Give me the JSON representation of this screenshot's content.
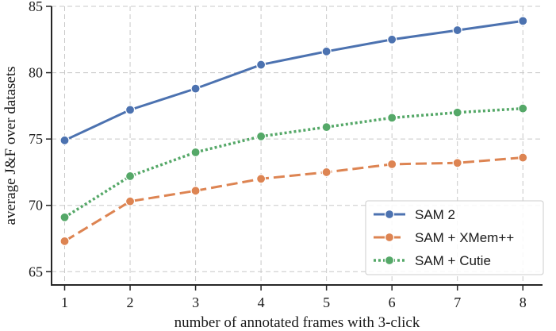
{
  "chart_data": {
    "type": "line",
    "x": [
      1,
      2,
      3,
      4,
      5,
      6,
      7,
      8
    ],
    "xlabel": "number of annotated frames with 3-click",
    "ylabel": "average J&F over datasets",
    "xlim": [
      0.8,
      8.3
    ],
    "ylim": [
      64,
      85
    ],
    "xticks": [
      1,
      2,
      3,
      4,
      5,
      6,
      7,
      8
    ],
    "yticks": [
      65,
      70,
      75,
      80,
      85
    ],
    "grid": true,
    "legend_position": "bottom-right",
    "series": [
      {
        "name": "SAM 2",
        "color": "#4c72b0",
        "linestyle": "solid",
        "values": [
          74.9,
          77.2,
          78.8,
          80.6,
          81.6,
          82.5,
          83.2,
          83.9
        ]
      },
      {
        "name": "SAM + XMem++",
        "color": "#dd8452",
        "linestyle": "dashed",
        "values": [
          67.3,
          70.3,
          71.1,
          72.0,
          72.5,
          73.1,
          73.2,
          73.6
        ]
      },
      {
        "name": "SAM + Cutie",
        "color": "#55a868",
        "linestyle": "dotted",
        "values": [
          69.1,
          72.2,
          74.0,
          75.2,
          75.9,
          76.6,
          77.0,
          77.3
        ]
      }
    ]
  }
}
